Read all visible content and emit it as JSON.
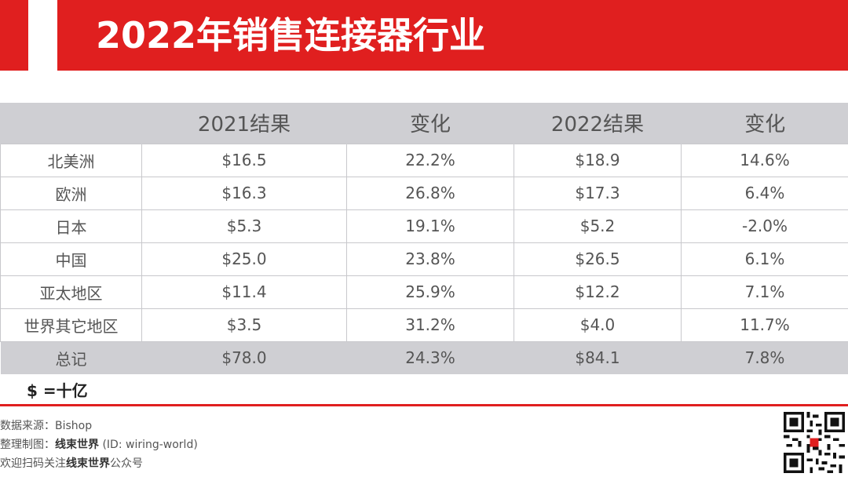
{
  "header": {
    "title": "2022年销售连接器行业"
  },
  "table": {
    "columns": [
      "",
      "2021结果",
      "变化",
      "2022结果",
      "变化"
    ],
    "rows": [
      [
        "北美洲",
        "$16.5",
        "22.2%",
        "$18.9",
        "14.6%"
      ],
      [
        "欧洲",
        "$16.3",
        "26.8%",
        "$17.3",
        "6.4%"
      ],
      [
        "日本",
        "$5.3",
        "19.1%",
        "$5.2",
        "-2.0%"
      ],
      [
        "中国",
        "$25.0",
        "23.8%",
        "$26.5",
        "6.1%"
      ],
      [
        "亚太地区",
        "$11.4",
        "25.9%",
        "$12.2",
        "7.1%"
      ],
      [
        "世界其它地区",
        "$3.5",
        "31.2%",
        "$4.0",
        "11.7%"
      ]
    ],
    "total": [
      "总记",
      "$78.0",
      "24.3%",
      "$84.1",
      "7.8%"
    ]
  },
  "unit_note": "$ =十亿",
  "footer": {
    "source_label": "数据来源：",
    "source_value": "Bishop",
    "compiled_label": "整理制图：",
    "compiled_brand": "线束世界",
    "compiled_id": " (ID: wiring-world)",
    "follow_prefix": "欢迎扫码关注",
    "follow_brand": "线束世界",
    "follow_suffix": "公众号"
  },
  "colors": {
    "accent": "#e01f1f",
    "header_bg": "#cfcfd3"
  },
  "icons": {
    "qr": "qr-code-icon"
  }
}
